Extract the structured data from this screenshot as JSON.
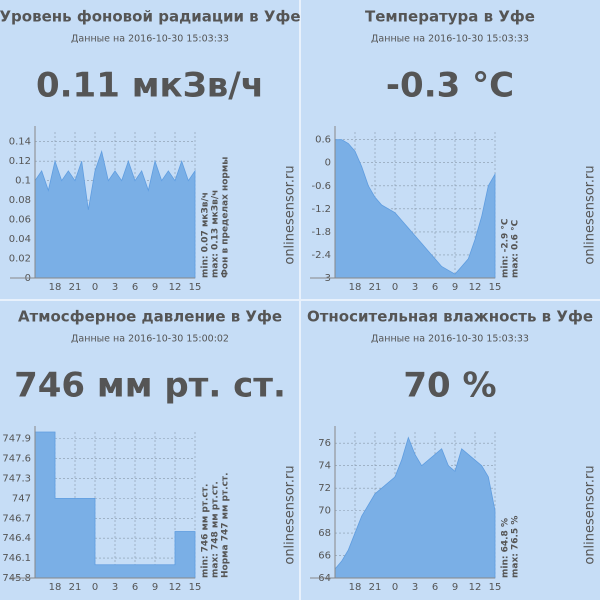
{
  "chart_data": [
    {
      "type": "area",
      "title": "Уровень фоновой радиации в Уфе",
      "subtitle": "Данные на  2016-10-30 15:03:33",
      "headline": "0.11 мкЗв/ч",
      "notes": [
        "min: 0.07 мкЗв/ч",
        "max: 0.13 мкЗв/ч",
        "Фон в пределах нормы"
      ],
      "watermark": "onlinesensor.ru",
      "color": "#7aafe6",
      "x": [
        15,
        16,
        17,
        18,
        19,
        20,
        21,
        22,
        23,
        24,
        25,
        26,
        27,
        28,
        29,
        30,
        31,
        32,
        33,
        34,
        35,
        36,
        37,
        38,
        39
      ],
      "values": [
        0.1,
        0.11,
        0.09,
        0.12,
        0.1,
        0.11,
        0.1,
        0.12,
        0.07,
        0.11,
        0.13,
        0.1,
        0.11,
        0.1,
        0.12,
        0.1,
        0.11,
        0.09,
        0.12,
        0.1,
        0.11,
        0.1,
        0.12,
        0.1,
        0.11
      ],
      "xlim": [
        15,
        39
      ],
      "xticks": [
        18,
        21,
        {
          "value": 24,
          "label": "0"
        },
        {
          "value": 27,
          "label": "3"
        },
        {
          "value": 30,
          "label": "6"
        },
        {
          "value": 33,
          "label": "9"
        },
        {
          "value": 36,
          "label": "12"
        },
        {
          "value": 39,
          "label": "15"
        }
      ],
      "ylim": [
        0,
        0.15
      ],
      "yticks": [
        0,
        0.02,
        0.04,
        0.06,
        0.08,
        0.1,
        0.12,
        0.14
      ],
      "grid": true
    },
    {
      "type": "area",
      "title": "Температура в Уфе",
      "subtitle": "Данные на  2016-10-30 15:03:33",
      "headline": "-0.3 °C",
      "notes": [
        "min: -2.9 °C",
        "max: 0.6 °C"
      ],
      "watermark": "onlinesensor.ru",
      "color": "#7aafe6",
      "x": [
        15,
        16,
        17,
        18,
        19,
        20,
        21,
        22,
        23,
        24,
        25,
        26,
        27,
        28,
        29,
        30,
        31,
        32,
        33,
        34,
        35,
        36,
        37,
        38,
        39
      ],
      "values": [
        0.6,
        0.6,
        0.5,
        0.3,
        -0.1,
        -0.6,
        -0.9,
        -1.1,
        -1.2,
        -1.3,
        -1.5,
        -1.7,
        -1.9,
        -2.1,
        -2.3,
        -2.5,
        -2.7,
        -2.8,
        -2.9,
        -2.7,
        -2.5,
        -2.0,
        -1.4,
        -0.6,
        -0.3
      ],
      "xlim": [
        15,
        39
      ],
      "xticks": [
        18,
        21,
        {
          "value": 24,
          "label": "0"
        },
        {
          "value": 27,
          "label": "3"
        },
        {
          "value": 30,
          "label": "6"
        },
        {
          "value": 33,
          "label": "9"
        },
        {
          "value": 36,
          "label": "12"
        },
        {
          "value": 39,
          "label": "15"
        }
      ],
      "ylim": [
        -3,
        0.8
      ],
      "yticks": [
        -3,
        -2.4,
        -1.8,
        -1.2,
        -0.6,
        0,
        0.6
      ],
      "grid": true
    },
    {
      "type": "area",
      "title": "Атмосферное давление в Уфе",
      "subtitle": "Данные на  2016-10-30 15:00:02",
      "headline": "746 мм рт. ст.",
      "notes": [
        "min: 746 мм рт.ст.",
        "max: 748 мм рт.ст.",
        "Норма 747 мм рт.ст."
      ],
      "watermark": "onlinesensor.ru",
      "color": "#7aafe6",
      "x": [
        15,
        18,
        18,
        24,
        24,
        36,
        36,
        39
      ],
      "values": [
        748,
        748,
        747,
        747,
        746,
        746,
        746.5,
        746.5
      ],
      "xlim": [
        15,
        39
      ],
      "xticks": [
        18,
        21,
        {
          "value": 24,
          "label": "0"
        },
        {
          "value": 27,
          "label": "3"
        },
        {
          "value": 30,
          "label": "6"
        },
        {
          "value": 33,
          "label": "9"
        },
        {
          "value": 36,
          "label": "12"
        },
        {
          "value": 39,
          "label": "15"
        }
      ],
      "ylim": [
        745.8,
        748
      ],
      "yticks": [
        745.8,
        746.1,
        746.4,
        746.7,
        747,
        747.3,
        747.6,
        747.9
      ],
      "grid": true
    },
    {
      "type": "area",
      "title": "Относительная влажность в Уфе",
      "subtitle": "Данные на  2016-10-30 15:03:33",
      "headline": "70 %",
      "notes": [
        "min: 64.8 %",
        "max: 76.5 %"
      ],
      "watermark": "onlinesensor.ru",
      "color": "#7aafe6",
      "x": [
        15,
        16,
        17,
        18,
        19,
        20,
        21,
        22,
        23,
        24,
        25,
        26,
        27,
        28,
        29,
        30,
        31,
        32,
        33,
        34,
        35,
        36,
        37,
        38,
        39
      ],
      "values": [
        64.8,
        65.5,
        66.5,
        68,
        69.5,
        70.5,
        71.5,
        72,
        72.5,
        73,
        74.5,
        76.5,
        75,
        74,
        74.5,
        75,
        75.5,
        74,
        73.5,
        75.5,
        75,
        74.5,
        74,
        73,
        70
      ],
      "xlim": [
        15,
        39
      ],
      "xticks": [
        18,
        21,
        {
          "value": 24,
          "label": "0"
        },
        {
          "value": 27,
          "label": "3"
        },
        {
          "value": 30,
          "label": "6"
        },
        {
          "value": 33,
          "label": "9"
        },
        {
          "value": 36,
          "label": "12"
        },
        {
          "value": 39,
          "label": "15"
        }
      ],
      "ylim": [
        64,
        77
      ],
      "yticks": [
        64,
        66,
        68,
        70,
        72,
        74,
        76
      ],
      "grid": true
    }
  ]
}
